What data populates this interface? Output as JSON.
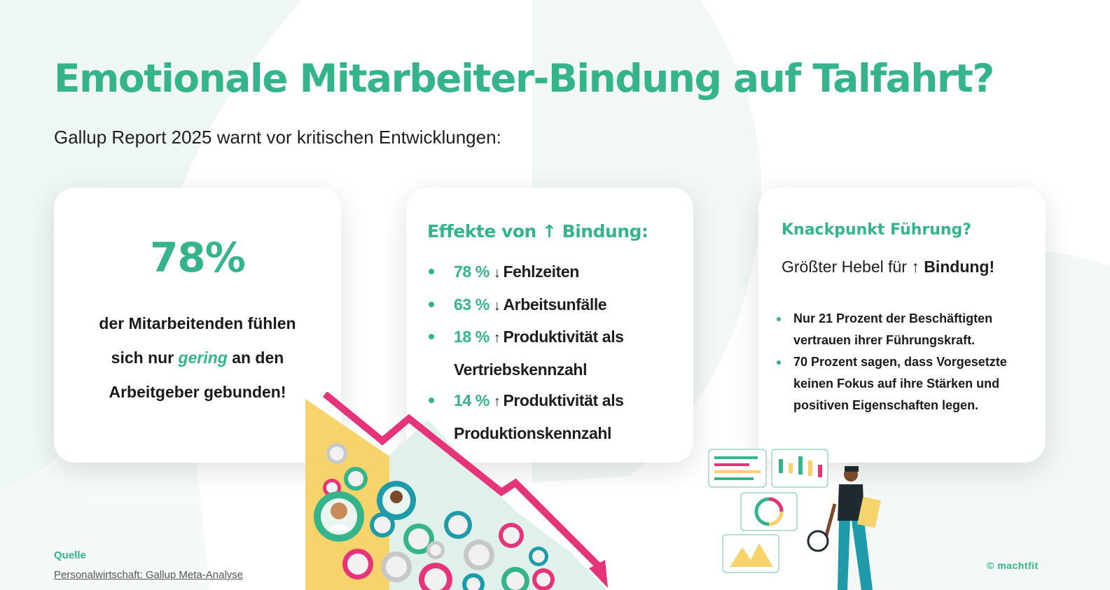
{
  "title": "Emotionale Mitarbeiter-Bindung auf Talfahrt?",
  "subtitle": "Gallup Report 2025 warnt vor kritischen Entwicklungen:",
  "card1": {
    "stat": "78%",
    "line1": "der Mitarbeitenden fühlen",
    "line2_pre": "sich nur ",
    "line2_em": "gering",
    "line2_post": " an den",
    "line3": "Arbeitgeber gebunden!"
  },
  "card2": {
    "heading": "Effekte von ↑ Bindung:",
    "items": [
      {
        "pct": "78 %",
        "arrow": "↓",
        "label": "Fehlzeiten"
      },
      {
        "pct": "63 %",
        "arrow": "↓",
        "label": "Arbeitsunfälle"
      },
      {
        "pct": "18 %",
        "arrow": "↑",
        "label": "Produktivität als",
        "label2": "Vertriebskennzahl"
      },
      {
        "pct": "14 %",
        "arrow": "↑",
        "label": "Produktivität als",
        "label2": "Produktionskennzahl"
      }
    ]
  },
  "card3": {
    "heading": "Knackpunkt Führung?",
    "sub_pre": "Größter Hebel für ",
    "sub_arrow": "↑",
    "sub_bold": " Bindung!",
    "facts": [
      "Nur 21 Prozent der Beschäftigten vertrauen ihrer Führungskraft.",
      "70 Prozent sagen, dass Vorgesetzte keinen Fokus auf ihre Stärken und positiven Eigenschaften legen."
    ]
  },
  "footer": {
    "source_label": "Quelle",
    "source_link": "Personalwirtschaft: Gallup Meta-Analyse",
    "copyright": "© machtfit"
  },
  "colors": {
    "accent": "#35b38a",
    "arrow": "#e5347a",
    "triangle": "#f6d36b",
    "bg_shape": "#eef7f3"
  },
  "icons": {
    "crowd": "people-crowd-illustration",
    "trend": "downtrend-arrow-icon",
    "dashboard": "dashboard-analyst-illustration"
  }
}
